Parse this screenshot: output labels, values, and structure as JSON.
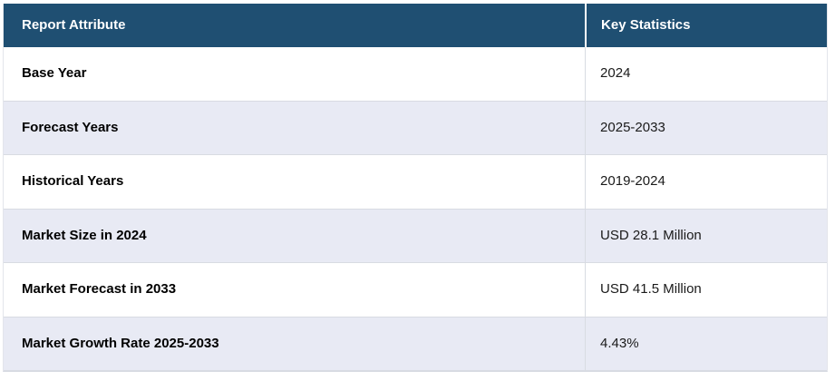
{
  "table": {
    "columns": [
      {
        "label": "Report Attribute"
      },
      {
        "label": "Key Statistics"
      }
    ],
    "rows": [
      {
        "attribute": "Base Year",
        "value": "2024"
      },
      {
        "attribute": "Forecast Years",
        "value": "2025-2033"
      },
      {
        "attribute": "Historical Years",
        "value": "2019-2024"
      },
      {
        "attribute": "Market Size in 2024",
        "value": "USD 28.1 Million"
      },
      {
        "attribute": "Market Forecast in 2033",
        "value": "USD 41.5 Million"
      },
      {
        "attribute": "Market Growth Rate 2025-2033",
        "value": "4.43%"
      }
    ],
    "colors": {
      "header_bg": "#1F4F72",
      "header_text": "#FFFFFF",
      "row_bg": "#FFFFFF",
      "row_alt_bg": "#E8EAF4",
      "border": "#D8DBE2",
      "body_text": "#111111"
    }
  }
}
